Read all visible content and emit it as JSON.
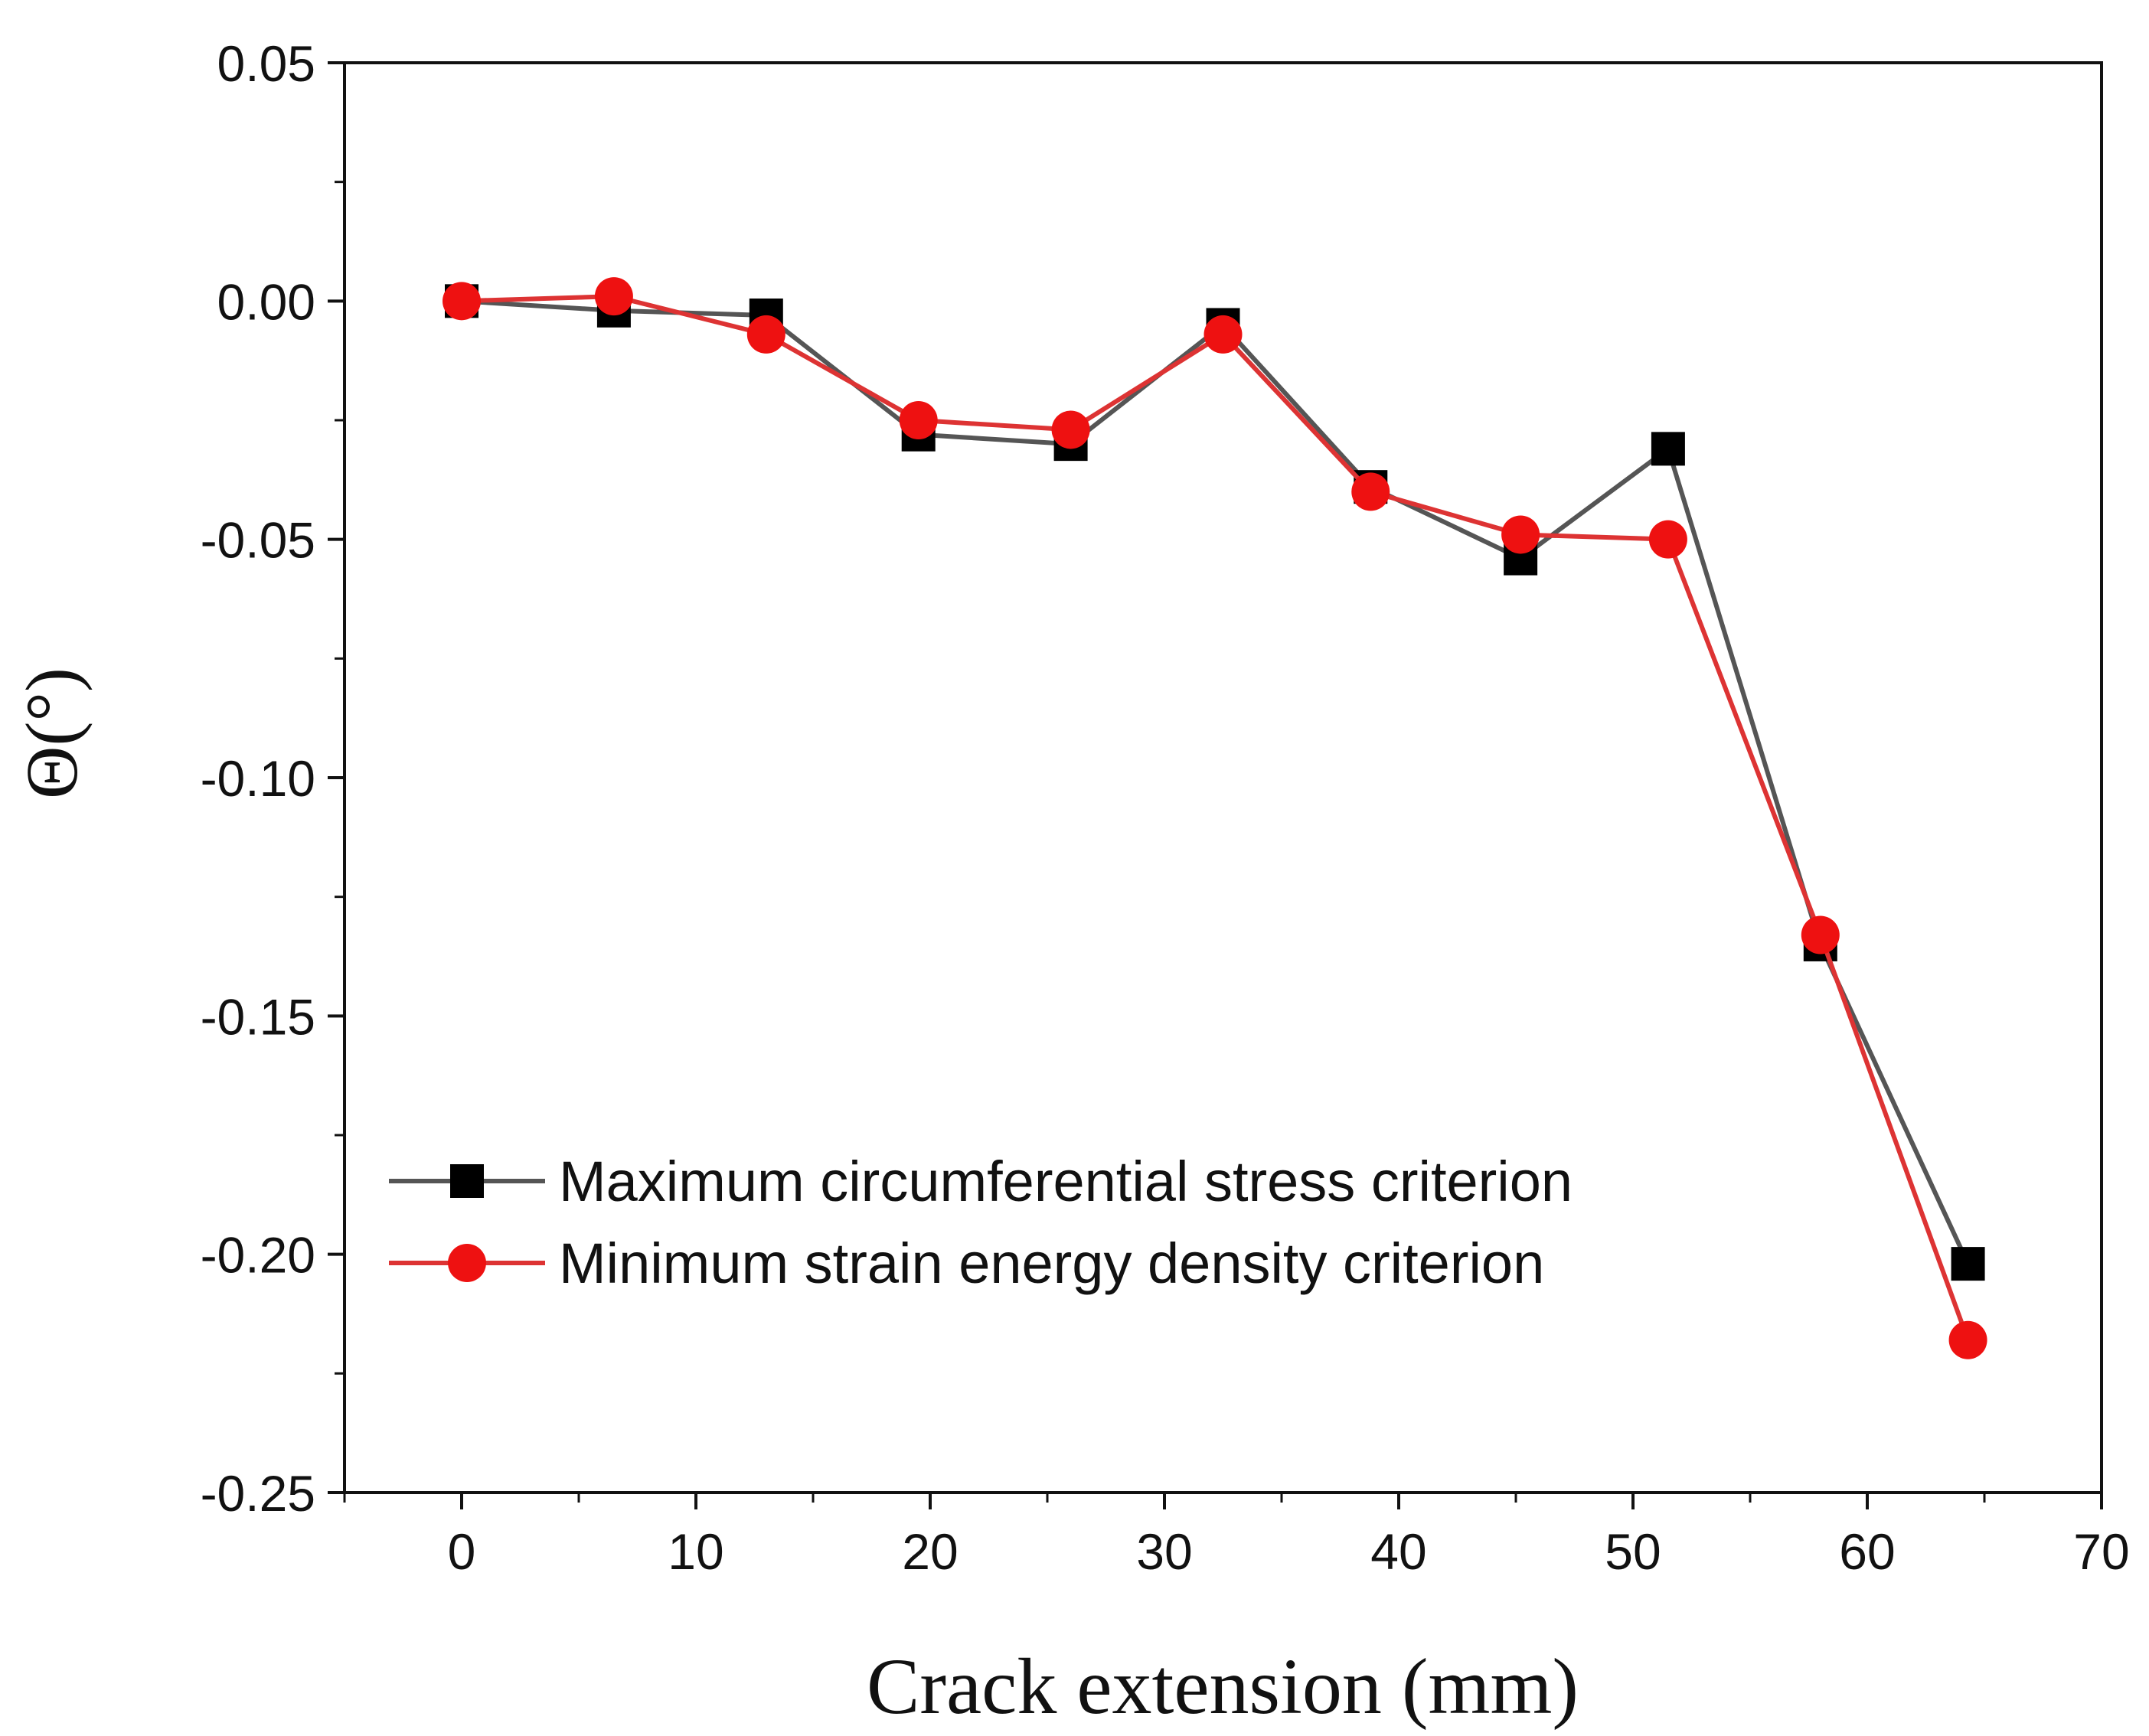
{
  "chart_data": {
    "type": "line",
    "title": "",
    "xlabel": "Crack extension (mm)",
    "ylabel": "Θ(°)",
    "xlim": [
      -5,
      70
    ],
    "ylim": [
      -0.25,
      0.05
    ],
    "xticks": [
      0,
      10,
      20,
      30,
      40,
      50,
      60,
      70
    ],
    "xtick_labels": [
      "0",
      "10",
      "20",
      "30",
      "40",
      "50",
      "60",
      "70"
    ],
    "yticks": [
      0.05,
      0.0,
      -0.05,
      -0.1,
      -0.15,
      -0.2,
      -0.25
    ],
    "ytick_labels": [
      "0.05",
      "0.00",
      "-0.05",
      "-0.10",
      "-0.15",
      "-0.20",
      "-0.25"
    ],
    "grid": false,
    "legend_position": "bottom-left",
    "x": [
      0,
      6.5,
      13,
      19.5,
      26,
      32.5,
      38.8,
      45.2,
      51.5,
      58,
      64.3
    ],
    "series": [
      {
        "name": "Maximum circumferential stress criterion",
        "color": "#000000",
        "line_color": "#555555",
        "marker": "square",
        "values": [
          0.0,
          -0.002,
          -0.003,
          -0.028,
          -0.03,
          -0.005,
          -0.039,
          -0.054,
          -0.031,
          -0.135,
          -0.202
        ]
      },
      {
        "name": "Minimum strain energy density criterion",
        "color": "#ee1111",
        "line_color": "#dd3333",
        "marker": "circle",
        "values": [
          0.0,
          0.001,
          -0.007,
          -0.025,
          -0.027,
          -0.007,
          -0.04,
          -0.049,
          -0.05,
          -0.133,
          -0.218
        ]
      }
    ]
  }
}
